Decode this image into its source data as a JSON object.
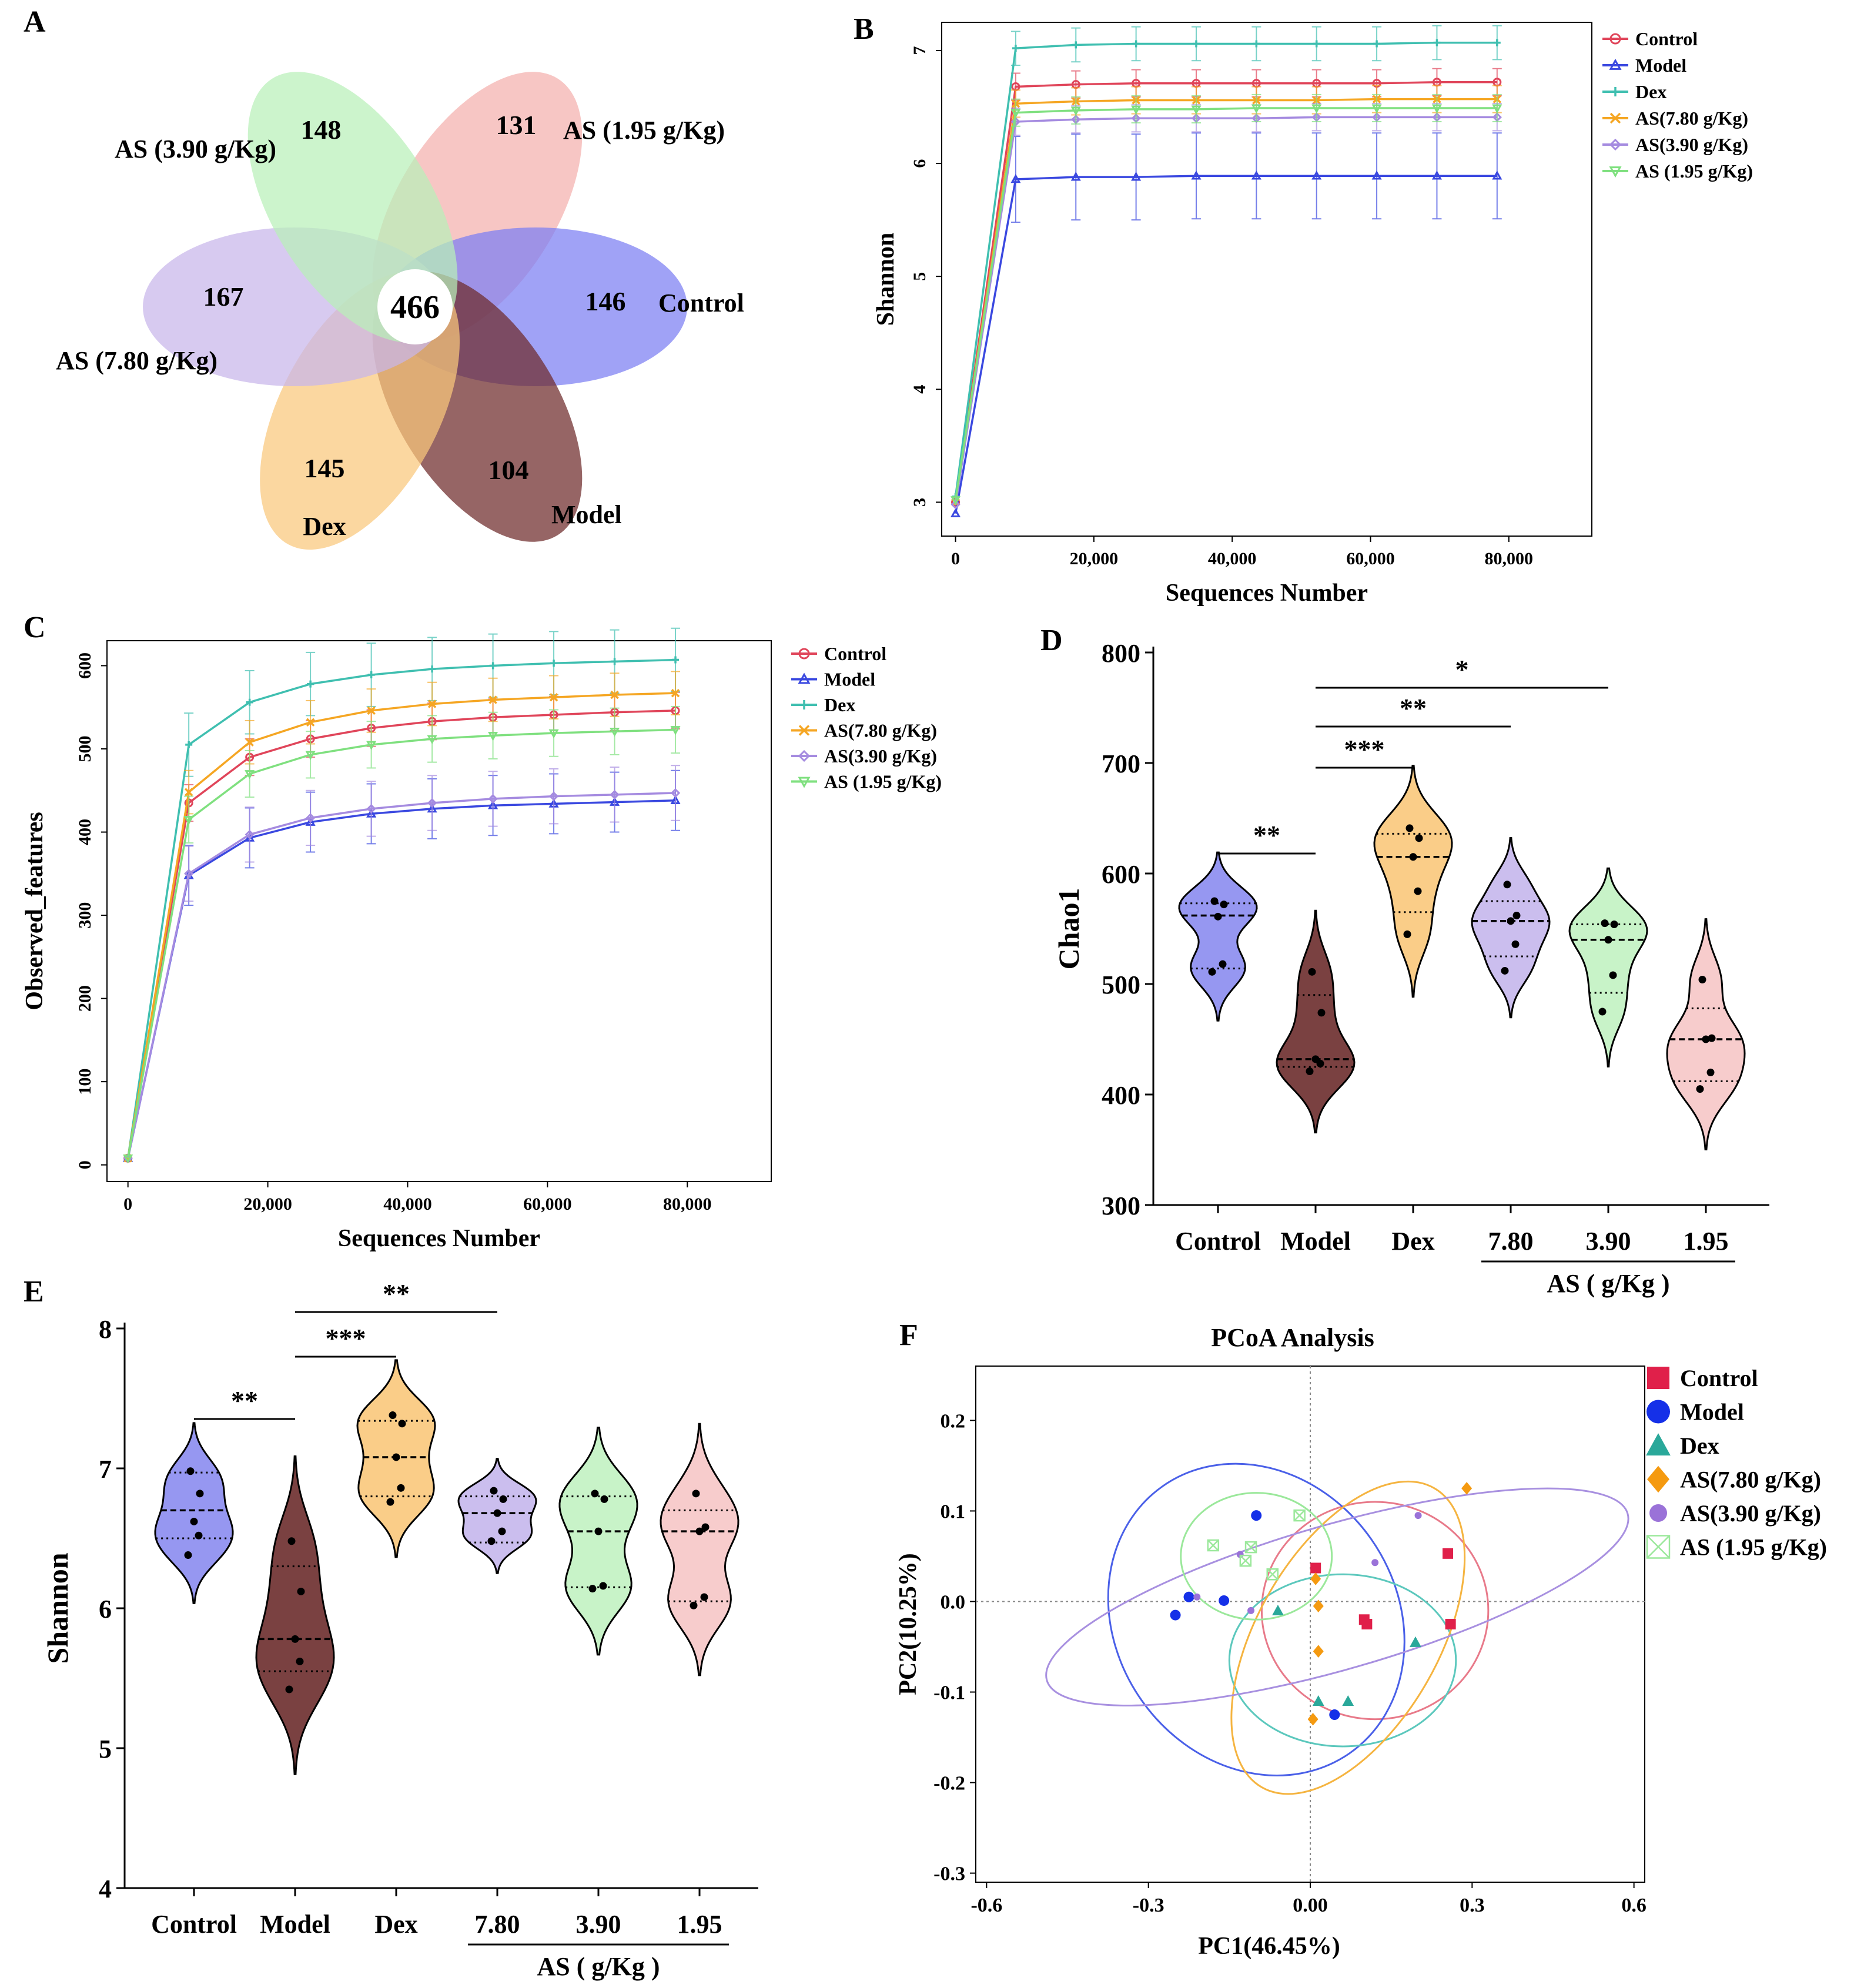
{
  "panel_labels": {
    "a": "A",
    "b": "B",
    "c": "C",
    "d": "D",
    "e": "E",
    "f": "F"
  },
  "chart_data": [
    {
      "id": "A",
      "type": "venn",
      "core": 466,
      "sets": [
        {
          "name": "AS (1.95 g/Kg)",
          "unique": 131,
          "color": "#f4b0ad"
        },
        {
          "name": "Control",
          "unique": 146,
          "color": "#7b7ef3"
        },
        {
          "name": "Model",
          "unique": 104,
          "color": "#6e2a2a"
        },
        {
          "name": "Dex",
          "unique": 145,
          "color": "#f9c87b"
        },
        {
          "name": "AS (7.80 g/Kg)",
          "unique": 167,
          "color": "#c8b6ea"
        },
        {
          "name": "AS (3.90 g/Kg)",
          "unique": 148,
          "color": "#b8f0b8"
        }
      ]
    },
    {
      "id": "B",
      "type": "line",
      "xlabel": "Sequences Number",
      "ylabel": "Shannon",
      "xlim": [
        -2000,
        92000
      ],
      "ylim": [
        2.7,
        7.25
      ],
      "xticks": [
        0,
        20000,
        40000,
        60000,
        80000
      ],
      "xtick_labels": [
        "0",
        "20,000",
        "40,000",
        "60,000",
        "80,000"
      ],
      "yticks": [
        3,
        4,
        5,
        6,
        7
      ],
      "ytick_labels": [
        "3",
        "4",
        "5",
        "6",
        "7"
      ],
      "x": [
        0,
        8700,
        17400,
        26100,
        34800,
        43500,
        52200,
        60900,
        69600,
        78300
      ],
      "series": [
        {
          "name": "Control",
          "color": "#e0455a",
          "marker": "circle",
          "values": [
            3.0,
            6.68,
            6.7,
            6.71,
            6.71,
            6.71,
            6.71,
            6.71,
            6.72,
            6.72
          ],
          "err": 0.12
        },
        {
          "name": "Model",
          "color": "#3a48e0",
          "marker": "triangle",
          "values": [
            2.9,
            5.86,
            5.88,
            5.88,
            5.89,
            5.89,
            5.89,
            5.89,
            5.89,
            5.89
          ],
          "err": 0.38
        },
        {
          "name": "Dex",
          "color": "#3fbfb0",
          "marker": "plus",
          "values": [
            3.05,
            7.02,
            7.05,
            7.06,
            7.06,
            7.06,
            7.06,
            7.06,
            7.07,
            7.07
          ],
          "err": 0.15
        },
        {
          "name": "AS(7.80 g/Kg)",
          "color": "#f5a623",
          "marker": "x",
          "values": [
            3.0,
            6.53,
            6.55,
            6.56,
            6.56,
            6.56,
            6.56,
            6.57,
            6.57,
            6.57
          ],
          "err": 0.12
        },
        {
          "name": "AS(3.90 g/Kg)",
          "color": "#a58be0",
          "marker": "diamond",
          "values": [
            2.98,
            6.37,
            6.39,
            6.4,
            6.4,
            6.4,
            6.41,
            6.41,
            6.41,
            6.41
          ],
          "err": 0.12
        },
        {
          "name": "AS (1.95 g/Kg)",
          "color": "#7fe07f",
          "marker": "tridown",
          "values": [
            3.02,
            6.45,
            6.47,
            6.48,
            6.48,
            6.49,
            6.49,
            6.49,
            6.49,
            6.49
          ],
          "err": 0.12
        }
      ]
    },
    {
      "id": "C",
      "type": "line",
      "xlabel": "Sequences Number",
      "ylabel": "Observed_features",
      "xlim": [
        -3000,
        92000
      ],
      "ylim": [
        -20,
        630
      ],
      "xticks": [
        0,
        20000,
        40000,
        60000,
        80000
      ],
      "xtick_labels": [
        "0",
        "20,000",
        "40,000",
        "60,000",
        "80,000"
      ],
      "yticks": [
        0,
        100,
        200,
        300,
        400,
        500,
        600
      ],
      "ytick_labels": [
        "0",
        "100",
        "200",
        "300",
        "400",
        "500",
        "600"
      ],
      "x": [
        0,
        8700,
        17400,
        26100,
        34800,
        43500,
        52200,
        60900,
        69600,
        78300
      ],
      "series": [
        {
          "name": "Control",
          "color": "#e0455a",
          "marker": "circle",
          "values": [
            8,
            435,
            490,
            512,
            525,
            533,
            538,
            541,
            544,
            546
          ],
          "err": 22
        },
        {
          "name": "Model",
          "color": "#3a48e0",
          "marker": "triangle",
          "values": [
            8,
            348,
            393,
            412,
            422,
            428,
            432,
            434,
            436,
            438
          ],
          "err": 36
        },
        {
          "name": "Dex",
          "color": "#3fbfb0",
          "marker": "plus",
          "values": [
            8,
            505,
            556,
            578,
            589,
            596,
            600,
            603,
            605,
            607
          ],
          "err": 38
        },
        {
          "name": "AS(7.80 g/Kg)",
          "color": "#f5a623",
          "marker": "x",
          "values": [
            8,
            448,
            508,
            532,
            546,
            554,
            559,
            562,
            565,
            567
          ],
          "err": 26
        },
        {
          "name": "AS(3.90 g/Kg)",
          "color": "#a58be0",
          "marker": "diamond",
          "values": [
            8,
            350,
            397,
            417,
            428,
            435,
            440,
            443,
            445,
            447
          ],
          "err": 33
        },
        {
          "name": "AS (1.95 g/Kg)",
          "color": "#7fe07f",
          "marker": "tridown",
          "values": [
            8,
            415,
            470,
            493,
            505,
            512,
            516,
            519,
            521,
            523
          ],
          "err": 28
        }
      ]
    },
    {
      "id": "D",
      "type": "violin",
      "ylabel": "Chao1",
      "ylim": [
        300,
        800
      ],
      "yticks": [
        300,
        400,
        500,
        600,
        700,
        800
      ],
      "ytick_labels": [
        "300",
        "400",
        "500",
        "600",
        "700",
        "800"
      ],
      "groups": [
        {
          "name": "Control",
          "color": "#8b8cf0",
          "points": [
            511,
            518,
            561,
            572,
            575
          ],
          "median": 562,
          "q1": 514,
          "q3": 573
        },
        {
          "name": "Model",
          "color": "#6b2c2c",
          "points": [
            421,
            428,
            432,
            474,
            511
          ],
          "median": 432,
          "q1": 425,
          "q3": 490
        },
        {
          "name": "Dex",
          "color": "#f9c87b",
          "points": [
            545,
            584,
            615,
            632,
            641
          ],
          "median": 615,
          "q1": 565,
          "q3": 636
        },
        {
          "name": "7.80",
          "color": "#c5b7ec",
          "points": [
            512,
            536,
            557,
            562,
            590
          ],
          "median": 557,
          "q1": 525,
          "q3": 575
        },
        {
          "name": "3.90",
          "color": "#c2f2c2",
          "points": [
            475,
            508,
            540,
            554,
            555
          ],
          "median": 540,
          "q1": 492,
          "q3": 554
        },
        {
          "name": "1.95",
          "color": "#f6c6c6",
          "points": [
            405,
            420,
            450,
            451,
            504
          ],
          "median": 450,
          "q1": 412,
          "q3": 478
        }
      ],
      "group_label": "AS ( g/Kg )",
      "significance": [
        {
          "from": 0,
          "to": 1,
          "label": "**"
        },
        {
          "from": 1,
          "to": 2,
          "label": "***"
        },
        {
          "from": 1,
          "to": 3,
          "label": "**"
        },
        {
          "from": 1,
          "to": 4,
          "label": "*"
        }
      ]
    },
    {
      "id": "E",
      "type": "violin",
      "ylabel": "Shannon",
      "ylim": [
        4,
        8
      ],
      "yticks": [
        4,
        5,
        6,
        7,
        8
      ],
      "ytick_labels": [
        "4",
        "5",
        "6",
        "7",
        "8"
      ],
      "groups": [
        {
          "name": "Control",
          "color": "#8b8cf0",
          "points": [
            6.38,
            6.52,
            6.62,
            6.82,
            6.98
          ],
          "median": 6.7,
          "q1": 6.5,
          "q3": 6.97
        },
        {
          "name": "Model",
          "color": "#6b2c2c",
          "points": [
            5.42,
            5.62,
            5.78,
            6.12,
            6.48
          ],
          "median": 5.78,
          "q1": 5.55,
          "q3": 6.3
        },
        {
          "name": "Dex",
          "color": "#f9c87b",
          "points": [
            6.76,
            6.86,
            7.08,
            7.32,
            7.38
          ],
          "median": 7.08,
          "q1": 6.8,
          "q3": 7.34
        },
        {
          "name": "7.80",
          "color": "#c5b7ec",
          "points": [
            6.48,
            6.55,
            6.68,
            6.78,
            6.84
          ],
          "median": 6.68,
          "q1": 6.47,
          "q3": 6.8
        },
        {
          "name": "3.90",
          "color": "#c2f2c2",
          "points": [
            6.14,
            6.16,
            6.55,
            6.78,
            6.82
          ],
          "median": 6.55,
          "q1": 6.15,
          "q3": 6.8
        },
        {
          "name": "1.95",
          "color": "#f6c6c6",
          "points": [
            6.02,
            6.08,
            6.55,
            6.58,
            6.82
          ],
          "median": 6.55,
          "q1": 6.05,
          "q3": 6.7
        }
      ],
      "group_label": "AS ( g/Kg )",
      "significance": [
        {
          "from": 0,
          "to": 1,
          "label": "**"
        },
        {
          "from": 1,
          "to": 2,
          "label": "***"
        },
        {
          "from": 1,
          "to": 3,
          "label": "**"
        }
      ]
    },
    {
      "id": "F",
      "type": "scatter",
      "title": "PCoA  Analysis",
      "xlabel": "PC1(46.45%)",
      "ylabel": "PC2(10.25%)",
      "xlim": [
        -0.62,
        0.62
      ],
      "ylim": [
        -0.31,
        0.26
      ],
      "xticks": [
        -0.6,
        -0.3,
        0,
        0.3,
        0.6
      ],
      "xtick_labels": [
        "-0.6",
        "-0.3",
        "0.00",
        "0.3",
        "0.6"
      ],
      "yticks": [
        0.2,
        0.1,
        0,
        -0.1,
        -0.2,
        -0.3
      ],
      "ytick_labels": [
        "0.2",
        "0.1",
        "0.0",
        "-0.1",
        "-0.2",
        "-0.3"
      ],
      "series": [
        {
          "name": "Control",
          "color": "#e0204a",
          "marker": "square",
          "points": [
            [
              0.01,
              0.037
            ],
            [
              0.1,
              -0.02
            ],
            [
              0.105,
              -0.025
            ],
            [
              0.255,
              0.053
            ],
            [
              0.26,
              -0.025
            ]
          ],
          "ellipse": {
            "cx": 0.12,
            "cy": -0.01,
            "rx": 0.21,
            "ry": 0.12,
            "angle": 0,
            "color": "#e87a8a"
          }
        },
        {
          "name": "Model",
          "color": "#1530e8",
          "marker": "circle",
          "points": [
            [
              -0.1,
              0.095
            ],
            [
              -0.225,
              0.005
            ],
            [
              -0.25,
              -0.015
            ],
            [
              -0.16,
              0.001
            ],
            [
              0.045,
              -0.125
            ]
          ],
          "ellipse": {
            "cx": -0.1,
            "cy": -0.02,
            "rx": 0.26,
            "ry": 0.18,
            "angle": -35,
            "color": "#4a60e8"
          }
        },
        {
          "name": "Dex",
          "color": "#2aa89a",
          "marker": "triangle",
          "points": [
            [
              -0.06,
              -0.01
            ],
            [
              0.015,
              -0.11
            ],
            [
              0.07,
              -0.11
            ],
            [
              0.195,
              -0.045
            ]
          ],
          "ellipse": {
            "cx": 0.06,
            "cy": -0.065,
            "rx": 0.21,
            "ry": 0.095,
            "angle": 0,
            "color": "#5cc8bd"
          }
        },
        {
          "name": "AS(7.80 g/Kg)",
          "color": "#f59a10",
          "marker": "diamond",
          "points": [
            [
              0.005,
              -0.13
            ],
            [
              0.01,
              0.025
            ],
            [
              0.015,
              -0.005
            ],
            [
              0.015,
              -0.055
            ],
            [
              0.29,
              0.125
            ]
          ],
          "ellipse": {
            "cx": 0.07,
            "cy": -0.04,
            "rx": 0.32,
            "ry": 0.1,
            "angle": -60,
            "color": "#f5b440"
          }
        },
        {
          "name": "AS(3.90 g/Kg)",
          "color": "#9a72d8",
          "marker": "circle",
          "points": [
            [
              -0.13,
              0.052
            ],
            [
              -0.11,
              -0.01
            ],
            [
              -0.21,
              0.005
            ],
            [
              0.12,
              0.043
            ],
            [
              0.2,
              0.095
            ]
          ],
          "ellipse": {
            "cx": 0.05,
            "cy": 0.005,
            "rx": 0.56,
            "ry": 0.08,
            "angle": -16,
            "color": "#a890e0"
          }
        },
        {
          "name": "AS (1.95 g/Kg)",
          "color": "#9be89b",
          "marker": "xbox",
          "points": [
            [
              -0.18,
              0.062
            ],
            [
              -0.12,
              0.045
            ],
            [
              -0.11,
              0.06
            ],
            [
              -0.07,
              0.03
            ],
            [
              -0.02,
              0.095
            ]
          ],
          "ellipse": {
            "cx": -0.1,
            "cy": 0.05,
            "rx": 0.14,
            "ry": 0.07,
            "angle": 0,
            "color": "#9be89b"
          }
        }
      ]
    }
  ]
}
